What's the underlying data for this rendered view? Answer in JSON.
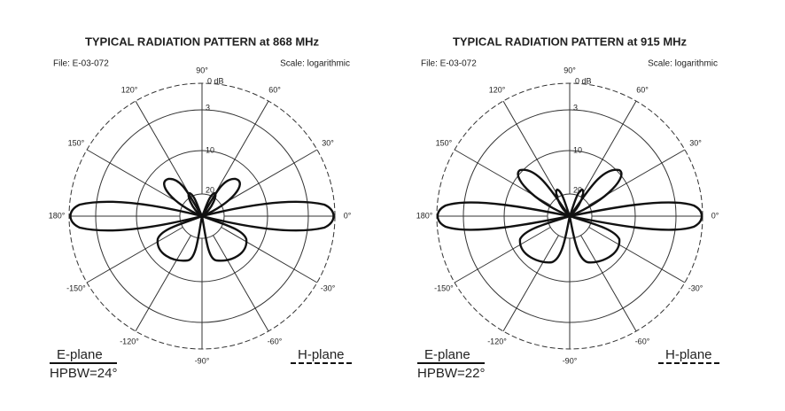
{
  "panels": [
    {
      "title": "TYPICAL RADIATION PATTERN at 868 MHz",
      "file": "File:  E-03-072",
      "scale": "Scale: logarithmic",
      "angles": [
        "0°",
        "30°",
        "60°",
        "90°",
        "120°",
        "150°",
        "180°",
        "-150°",
        "-120°",
        "-90°",
        "-60°",
        "-30°"
      ],
      "rings": [
        "0  dB",
        "3",
        "10",
        "20"
      ],
      "e_plane": "E-plane",
      "hpbw": "HPBW=24°",
      "h_plane": "H-plane"
    },
    {
      "title": "TYPICAL RADIATION PATTERN at 915 MHz",
      "file": "File:  E-03-072",
      "scale": "Scale: logarithmic",
      "angles": [
        "0°",
        "30°",
        "60°",
        "90°",
        "120°",
        "150°",
        "180°",
        "-150°",
        "-120°",
        "-90°",
        "-60°",
        "-30°"
      ],
      "rings": [
        "0  dB",
        "3",
        "10",
        "20"
      ],
      "e_plane": "E-plane",
      "hpbw": "HPBW=22°",
      "h_plane": "H-plane"
    }
  ]
}
